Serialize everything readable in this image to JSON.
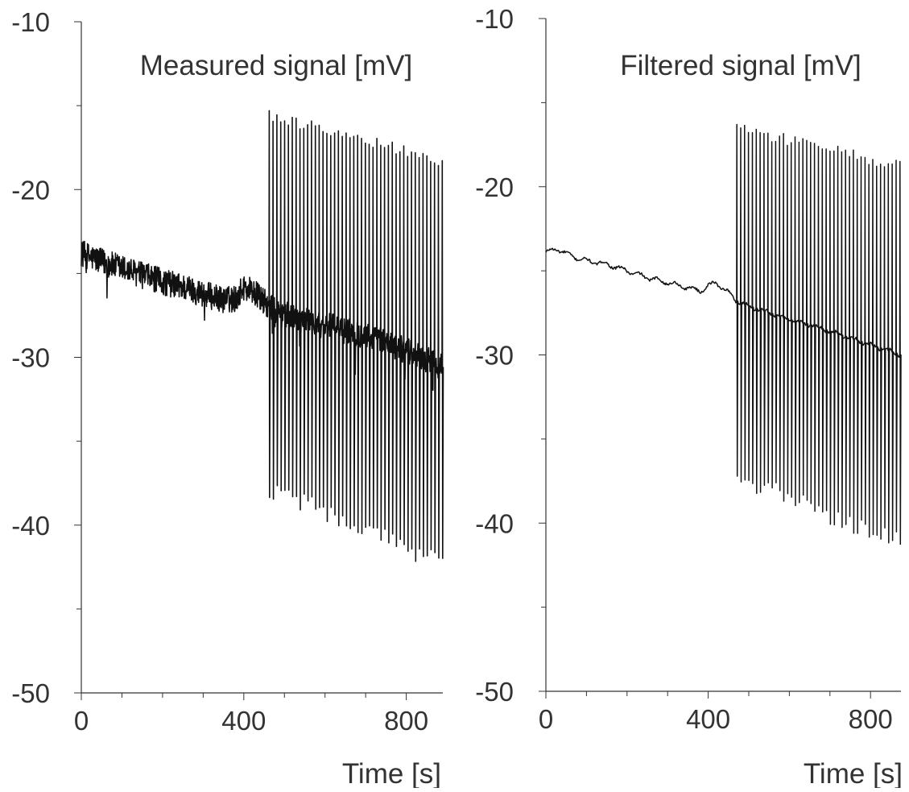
{
  "chart_data": [
    {
      "type": "line",
      "title": "Measured signal [mV]",
      "xlabel": "Time [s]",
      "ylabel": "",
      "xlim": [
        0,
        890
      ],
      "ylim": [
        -50,
        -10
      ],
      "x_ticks": [
        0,
        400,
        800
      ],
      "y_ticks": [
        -10,
        -20,
        -30,
        -40,
        -50
      ],
      "x_tick_labels": [
        "0",
        "400",
        "800"
      ],
      "y_tick_labels": [
        "-10",
        "-20",
        "-30",
        "-40",
        "-50"
      ],
      "grid": false,
      "line_color": "#111111",
      "baseline": {
        "x": [
          0,
          50,
          100,
          150,
          200,
          250,
          300,
          350,
          380,
          400,
          420,
          450,
          470,
          500,
          550,
          600,
          650,
          700,
          750,
          800,
          850,
          890
        ],
        "y": [
          -23.8,
          -24.3,
          -24.7,
          -25.1,
          -25.5,
          -25.8,
          -26.2,
          -26.6,
          -26.5,
          -25.8,
          -26.0,
          -26.7,
          -27.1,
          -27.4,
          -27.8,
          -28.1,
          -28.4,
          -28.7,
          -29.1,
          -29.6,
          -30.1,
          -30.6
        ]
      },
      "noise_amplitude": 0.8,
      "spikes": {
        "start": 462,
        "end": 888,
        "count": 46,
        "peak_start": -15.6,
        "peak_end": -18.3,
        "trough_start": -37.8,
        "trough_end": -42.3
      }
    },
    {
      "type": "line",
      "title": "Filtered signal [mV]",
      "xlabel": "Time [s]",
      "ylabel": "",
      "xlim": [
        0,
        875
      ],
      "ylim": [
        -50,
        -10
      ],
      "x_ticks": [
        0,
        400,
        800
      ],
      "y_ticks": [
        -10,
        -20,
        -30,
        -40,
        -50
      ],
      "x_tick_labels": [
        "0",
        "400",
        "800"
      ],
      "y_tick_labels": [
        "-10",
        "-20",
        "-30",
        "-40",
        "-50"
      ],
      "grid": false,
      "line_color": "#111111",
      "baseline": {
        "x": [
          0,
          30,
          60,
          100,
          150,
          200,
          250,
          300,
          350,
          380,
          400,
          420,
          450,
          470,
          500,
          550,
          600,
          650,
          700,
          750,
          800,
          850,
          875
        ],
        "y": [
          -23.9,
          -23.7,
          -24.1,
          -24.4,
          -24.6,
          -25.0,
          -25.4,
          -25.7,
          -26.0,
          -26.2,
          -25.9,
          -25.7,
          -26.3,
          -26.8,
          -27.1,
          -27.5,
          -27.9,
          -28.2,
          -28.6,
          -29.0,
          -29.4,
          -29.8,
          -30.0
        ]
      },
      "noise_amplitude": 0.15,
      "spikes": {
        "start": 470,
        "end": 872,
        "count": 43,
        "peak_start": -16.5,
        "peak_end": -18.8,
        "trough_start": -37.2,
        "trough_end": -41.2
      }
    }
  ]
}
